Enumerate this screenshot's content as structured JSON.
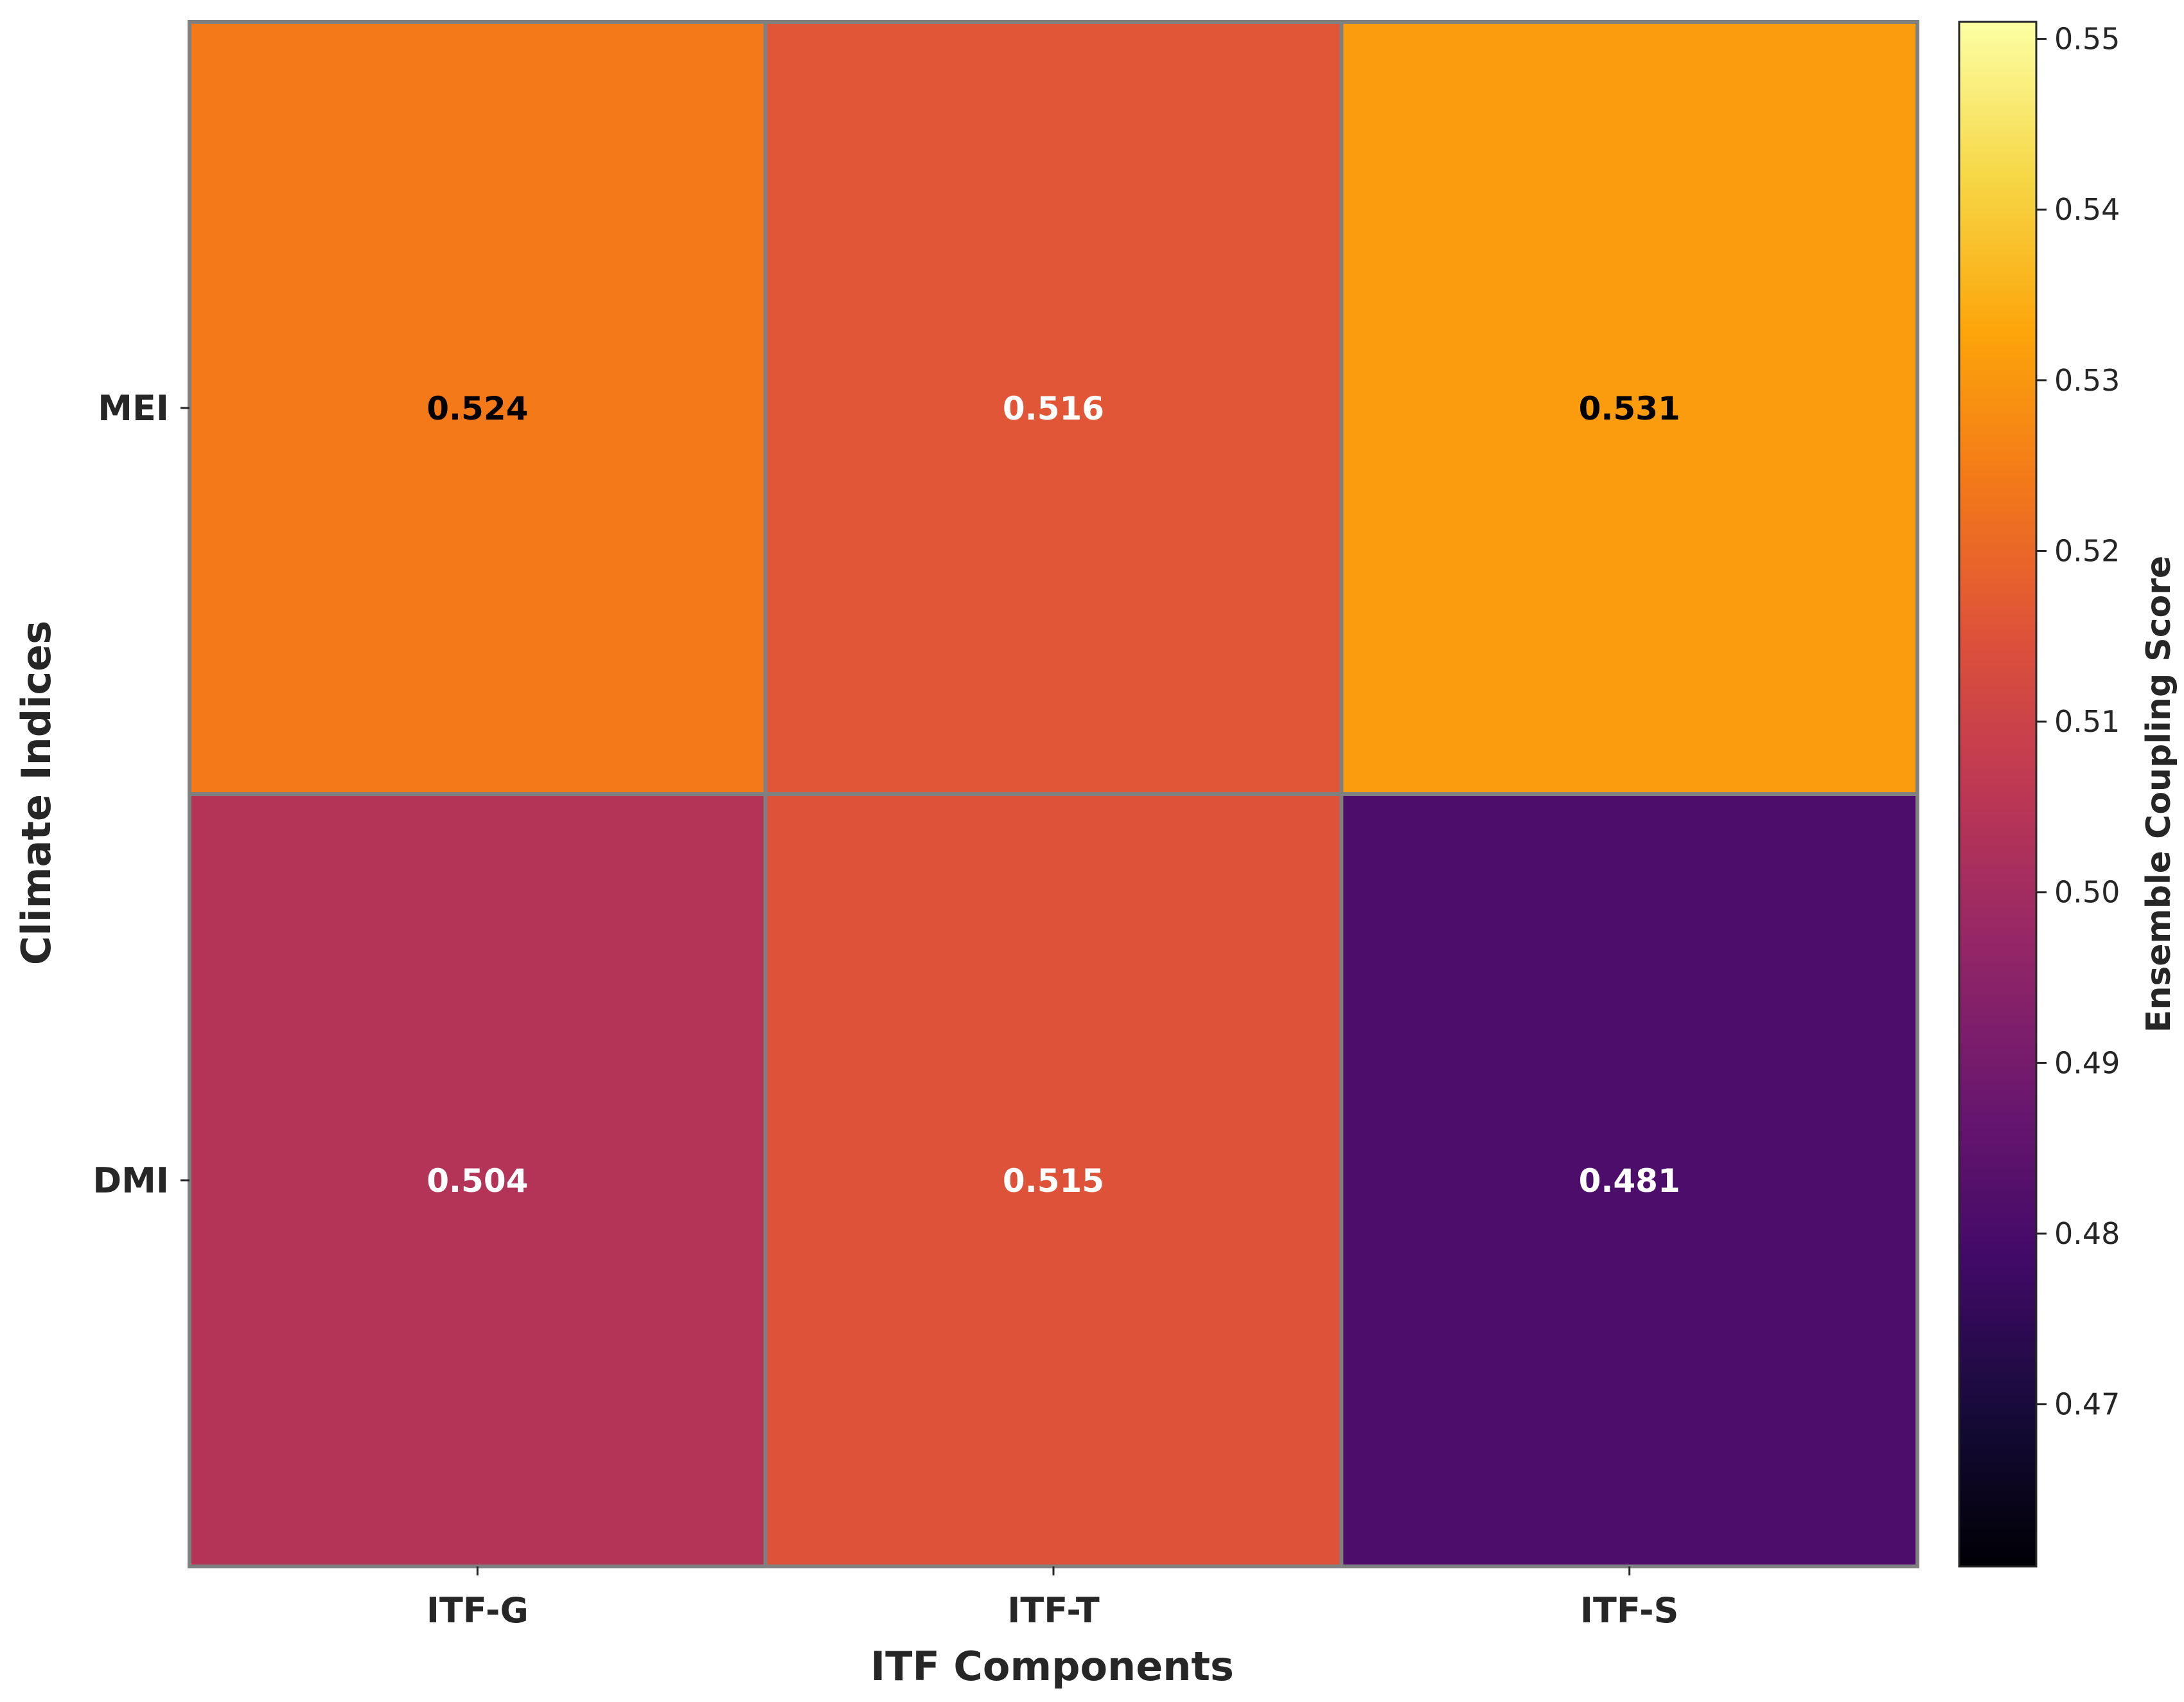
{
  "chart_data": {
    "type": "heatmap",
    "title": "",
    "xlabel": "ITF Components",
    "ylabel": "Climate Indices",
    "x_categories": [
      "ITF-G",
      "ITF-T",
      "ITF-S"
    ],
    "y_categories": [
      "MEI",
      "DMI"
    ],
    "values": [
      [
        0.524,
        0.516,
        0.531
      ],
      [
        0.504,
        0.515,
        0.481
      ]
    ],
    "value_labels": [
      [
        "0.524",
        "0.516",
        "0.531"
      ],
      [
        "0.504",
        "0.515",
        "0.481"
      ]
    ],
    "colorbar": {
      "label": "Ensemble Coupling Score",
      "colormap": "inferno",
      "range": [
        0.4605,
        0.551
      ],
      "ticks": [
        0.47,
        0.48,
        0.49,
        0.5,
        0.51,
        0.52,
        0.53,
        0.54,
        0.55
      ],
      "tick_labels": [
        "0.47",
        "0.48",
        "0.49",
        "0.50",
        "0.51",
        "0.52",
        "0.53",
        "0.54",
        "0.55"
      ]
    },
    "cell_border_color": "#808080",
    "grid": false,
    "legend": "colorbar-right"
  }
}
